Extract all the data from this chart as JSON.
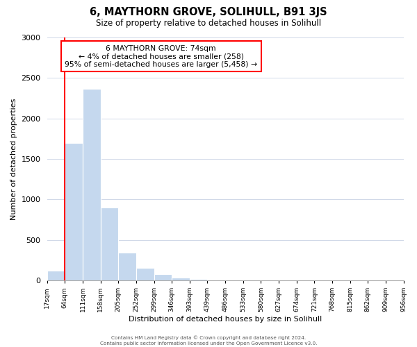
{
  "title": "6, MAYTHORN GROVE, SOLIHULL, B91 3JS",
  "subtitle": "Size of property relative to detached houses in Solihull",
  "xlabel": "Distribution of detached houses by size in Solihull",
  "ylabel": "Number of detached properties",
  "bar_values": [
    120,
    1700,
    2370,
    900,
    340,
    155,
    80,
    35,
    18,
    0,
    0,
    0,
    0,
    0,
    0,
    0,
    0,
    0,
    0,
    0
  ],
  "bar_color": "#c5d8ee",
  "tick_labels": [
    "17sqm",
    "64sqm",
    "111sqm",
    "158sqm",
    "205sqm",
    "252sqm",
    "299sqm",
    "346sqm",
    "393sqm",
    "439sqm",
    "486sqm",
    "533sqm",
    "580sqm",
    "627sqm",
    "674sqm",
    "721sqm",
    "768sqm",
    "815sqm",
    "862sqm",
    "909sqm",
    "956sqm"
  ],
  "ylim": [
    0,
    3000
  ],
  "yticks": [
    0,
    500,
    1000,
    1500,
    2000,
    2500,
    3000
  ],
  "red_line_x": 1,
  "annotation_title": "6 MAYTHORN GROVE: 74sqm",
  "annotation_line1": "← 4% of detached houses are smaller (258)",
  "annotation_line2": "95% of semi-detached houses are larger (5,458) →",
  "footer_line1": "Contains HM Land Registry data © Crown copyright and database right 2024.",
  "footer_line2": "Contains public sector information licensed under the Open Government Licence v3.0.",
  "background_color": "#ffffff",
  "grid_color": "#d0d8e8"
}
